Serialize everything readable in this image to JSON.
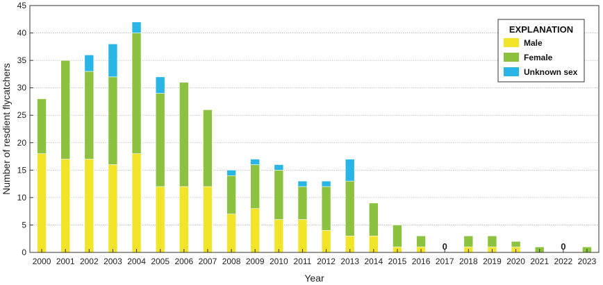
{
  "chart_data": {
    "type": "bar",
    "stacked": true,
    "categories": [
      "2000",
      "2001",
      "2002",
      "2003",
      "2004",
      "2005",
      "2006",
      "2007",
      "2008",
      "2009",
      "2010",
      "2011",
      "2012",
      "2013",
      "2014",
      "2015",
      "2016",
      "2017",
      "2018",
      "2019",
      "2020",
      "2021",
      "2022",
      "2023"
    ],
    "series": [
      {
        "name": "Male",
        "color": "#f2e428",
        "values": [
          18,
          17,
          17,
          16,
          18,
          12,
          12,
          12,
          7,
          8,
          6,
          6,
          4,
          3,
          3,
          1,
          1,
          0,
          1,
          1,
          1,
          0,
          0,
          0
        ]
      },
      {
        "name": "Female",
        "color": "#8dc241",
        "values": [
          10,
          18,
          16,
          16,
          22,
          17,
          19,
          14,
          7,
          8,
          9,
          6,
          8,
          10,
          6,
          4,
          2,
          0,
          2,
          2,
          1,
          1,
          0,
          1
        ]
      },
      {
        "name": "Unknown sex",
        "color": "#29b6e6",
        "values": [
          0,
          0,
          3,
          6,
          2,
          3,
          0,
          0,
          1,
          1,
          1,
          1,
          1,
          4,
          0,
          0,
          0,
          0,
          0,
          0,
          0,
          0,
          0,
          0
        ]
      }
    ],
    "annotations": [
      {
        "category": "2017",
        "text": "0"
      },
      {
        "category": "2022",
        "text": "0"
      }
    ],
    "title": "",
    "xlabel": "Year",
    "ylabel": "Number of resdient flycatchers",
    "ylim": [
      0,
      45
    ],
    "yticks": [
      0,
      5,
      10,
      15,
      20,
      25,
      30,
      35,
      40,
      45
    ],
    "grid": "horizontal",
    "legend": {
      "title": "EXPLANATION",
      "position": "top-right"
    }
  }
}
